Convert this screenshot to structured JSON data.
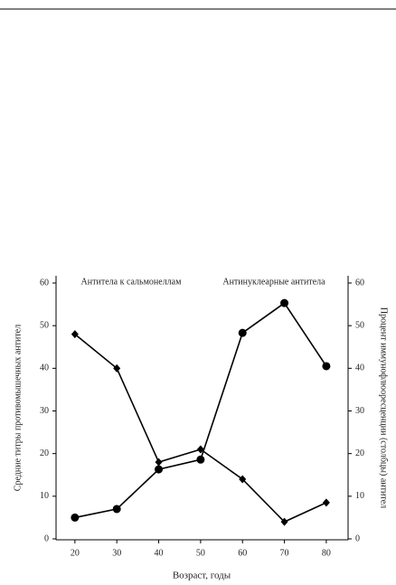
{
  "chart_data": {
    "type": "line",
    "x_label": "Возраст, годы",
    "y_label": "Средние титры противомышечных антител",
    "y2_label": "Процент иммунофлюоресценции (столбцы) антител",
    "x": [
      20,
      30,
      40,
      50,
      60,
      70,
      80
    ],
    "xlim": [
      15.5,
      85.2
    ],
    "xticks": [
      20,
      30,
      40,
      50,
      60,
      70,
      80
    ],
    "ylim": [
      0,
      60
    ],
    "yticks": [
      0,
      10,
      20,
      30,
      40,
      50,
      60
    ],
    "y2lim": [
      0,
      60
    ],
    "y2ticks": [
      0,
      10,
      20,
      30,
      40,
      50,
      60
    ],
    "series": [
      {
        "name": "Антитела к сальмонеллам",
        "color": "#000000",
        "marker": "diamond",
        "values": [
          48,
          40,
          18,
          21,
          14,
          4,
          8.5
        ]
      },
      {
        "name": "Антинуклеарные антитела",
        "color": "#000000",
        "marker": "circle",
        "axis": "y2",
        "values": [
          5,
          7,
          16.3,
          18.6,
          48.3,
          55.3,
          40.5
        ]
      }
    ]
  }
}
